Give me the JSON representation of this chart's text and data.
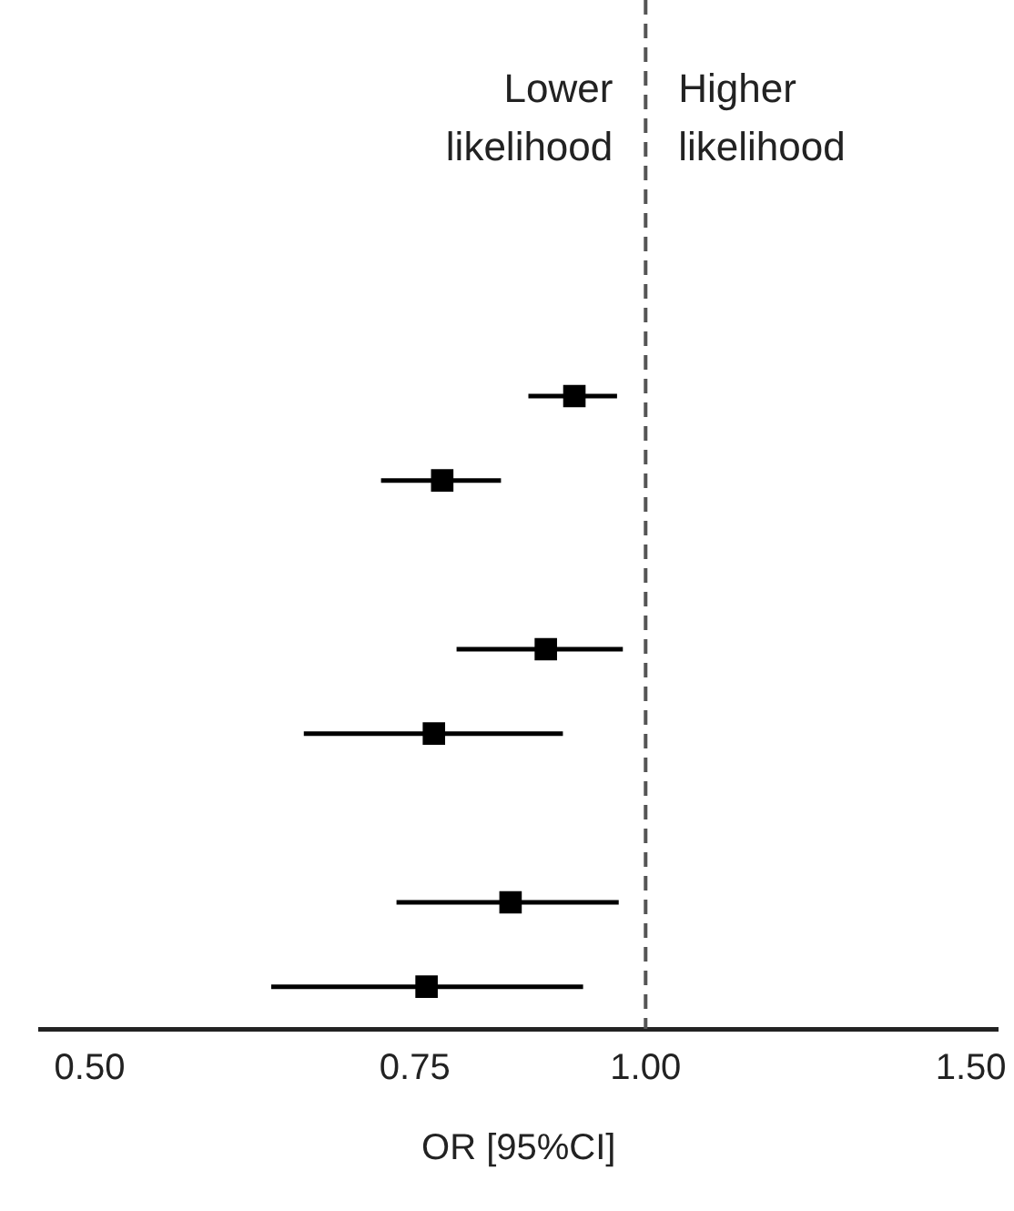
{
  "chart_data": {
    "type": "scatter",
    "orientation": "horizontal",
    "xlabel": "OR [95%CI]",
    "categories": [
      null,
      null,
      null,
      null,
      null,
      null,
      null,
      null,
      null,
      null,
      null,
      null
    ],
    "series": [
      {
        "color": "#000000",
        "values": [
          null,
          null,
          null,
          null,
          0.915,
          0.776,
          null,
          0.883,
          0.768,
          null,
          0.845,
          0.761
        ],
        "errors": [
          null,
          null,
          null,
          null,
          [
            0.864,
            0.965
          ],
          [
            0.719,
            0.835
          ],
          null,
          [
            0.79,
            0.972
          ],
          [
            0.653,
            0.902
          ],
          null,
          [
            0.733,
            0.967
          ],
          [
            0.627,
            0.925
          ]
        ]
      }
    ],
    "marker": "square",
    "log": "x",
    "xlim": [
      0.47,
      1.55
    ],
    "xticks": [
      {
        "value": 0.5,
        "label": "0.50"
      },
      {
        "value": 0.75,
        "label": "0.75"
      },
      {
        "value": 1,
        "label": "1.00"
      },
      {
        "value": 1.5,
        "label": "1.50"
      }
    ],
    "ref_lines": [
      {
        "axis": "x",
        "value": 1,
        "line_style": "dashed",
        "color": "#555555"
      }
    ],
    "annotations": [
      "Lower\nlikelihood",
      "Higher\nlikelihood"
    ],
    "grid": false,
    "legend": false
  }
}
